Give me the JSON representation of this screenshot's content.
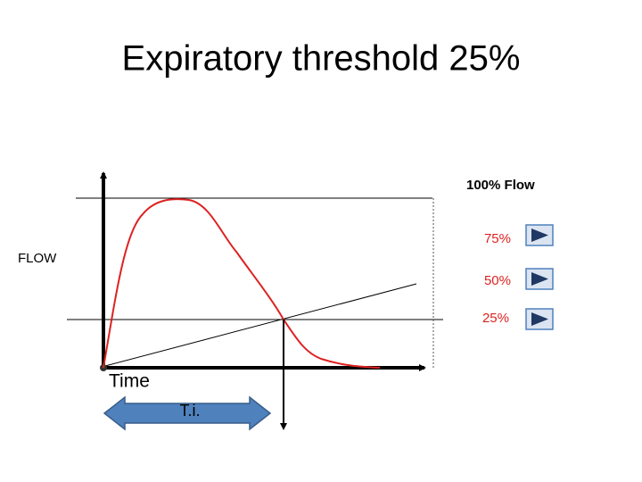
{
  "title": "Expiratory threshold 25%",
  "labels": {
    "full_flow": "100% Flow",
    "y_axis": "FLOW",
    "x_axis": "Time",
    "inspiratory_time": "T.i."
  },
  "buttons": [
    {
      "label": "75%"
    },
    {
      "label": "50%"
    },
    {
      "label": "25%"
    }
  ]
}
